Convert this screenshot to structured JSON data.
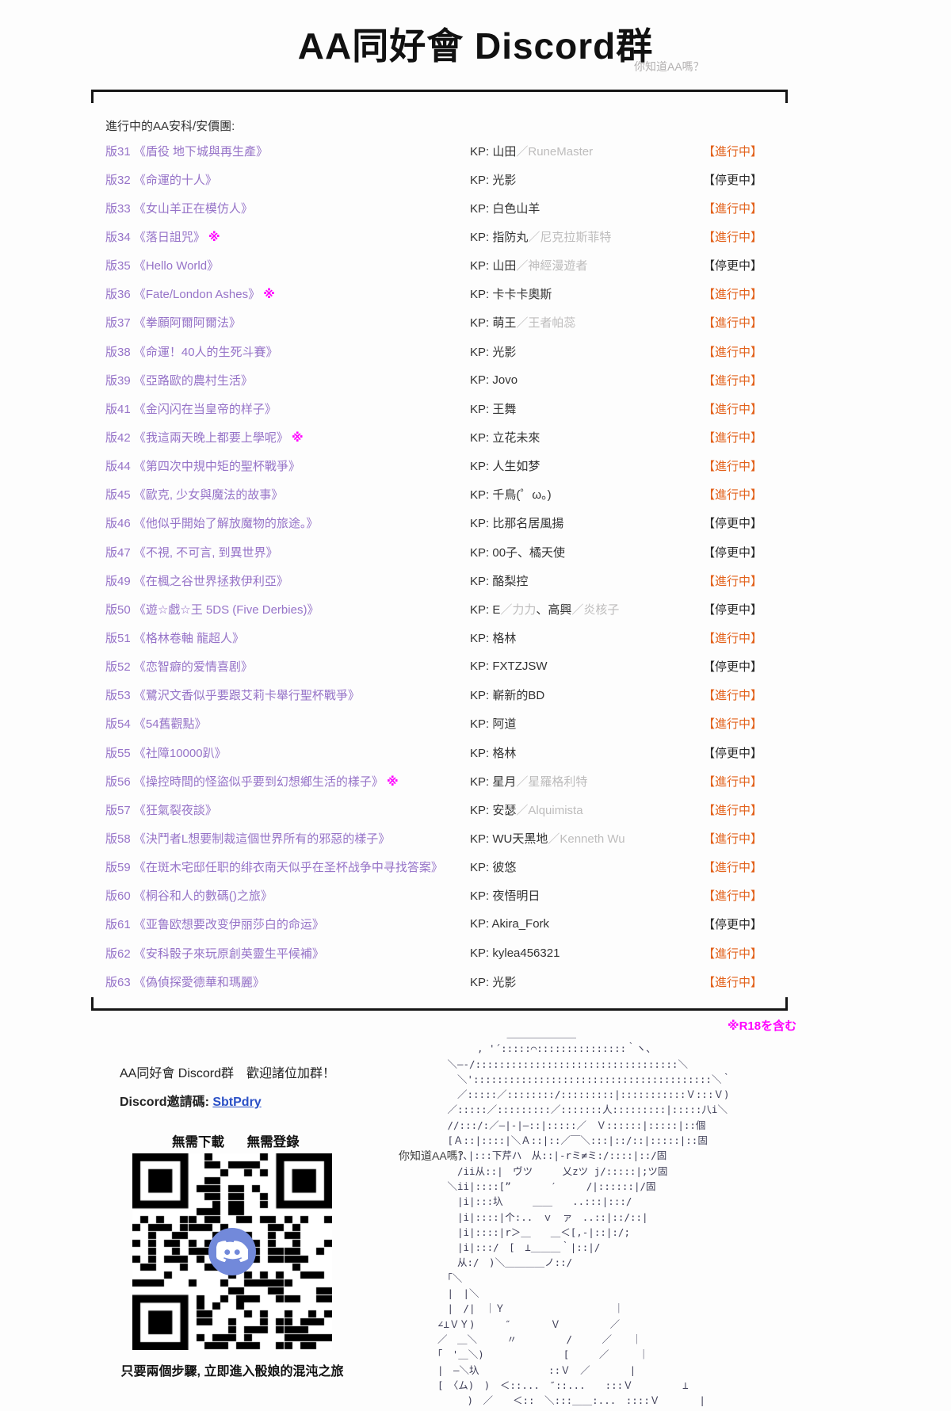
{
  "header": {
    "title": "AA同好會 Discord群",
    "subtitle": "你知道AA嗎？"
  },
  "list": {
    "header": "進行中的AA安科/安價團:",
    "kp_prefix": "KP:",
    "r18_mark": "※",
    "statuses": {
      "ongoing": "【進行中】",
      "paused": "【停更中】"
    },
    "rows": [
      {
        "no": "版31",
        "title": "《盾役 地下城與再生產》",
        "r18": false,
        "kp": [
          {
            "t": "山田"
          },
          {
            "t": "／RuneMaster",
            "g": 1
          }
        ],
        "s": "ongoing"
      },
      {
        "no": "版32",
        "title": "《命運的十人》",
        "r18": false,
        "kp": [
          {
            "t": "光影"
          }
        ],
        "s": "paused"
      },
      {
        "no": "版33",
        "title": "《女山羊正在模仿人》",
        "r18": false,
        "kp": [
          {
            "t": "白色山羊"
          }
        ],
        "s": "ongoing"
      },
      {
        "no": "版34",
        "title": "《落日詛咒》",
        "r18": true,
        "kp": [
          {
            "t": "指防丸"
          },
          {
            "t": "／尼克拉斯菲特",
            "g": 1
          }
        ],
        "s": "ongoing"
      },
      {
        "no": "版35",
        "title": "《Hello World》",
        "r18": false,
        "kp": [
          {
            "t": "山田"
          },
          {
            "t": "／神經漫遊者",
            "g": 1
          }
        ],
        "s": "paused"
      },
      {
        "no": "版36",
        "title": "《Fate/London Ashes》",
        "r18": true,
        "kp": [
          {
            "t": "卡卡卡奧斯"
          }
        ],
        "s": "ongoing"
      },
      {
        "no": "版37",
        "title": "《拳願阿爾阿爾法》",
        "r18": false,
        "kp": [
          {
            "t": "萌王"
          },
          {
            "t": "／王者帕蕊",
            "g": 1
          }
        ],
        "s": "ongoing"
      },
      {
        "no": "版38",
        "title": "《命運！40人的生死斗賽》",
        "r18": false,
        "kp": [
          {
            "t": "光影"
          }
        ],
        "s": "ongoing"
      },
      {
        "no": "版39",
        "title": "《亞路歐的農村生活》",
        "r18": false,
        "kp": [
          {
            "t": "Jovo"
          }
        ],
        "s": "ongoing"
      },
      {
        "no": "版41",
        "title": "《金闪闪在当皇帝的样子》",
        "r18": false,
        "kp": [
          {
            "t": "王舞"
          }
        ],
        "s": "ongoing"
      },
      {
        "no": "版42",
        "title": "《我這兩天晚上都要上學呢》",
        "r18": true,
        "kp": [
          {
            "t": "立花未來"
          }
        ],
        "s": "ongoing"
      },
      {
        "no": "版44",
        "title": "《第四次中規中矩的聖杯戰爭》",
        "r18": false,
        "kp": [
          {
            "t": "人生如梦"
          }
        ],
        "s": "ongoing"
      },
      {
        "no": "版45",
        "title": "《歐克, 少女與魔法的故事》",
        "r18": false,
        "kp": [
          {
            "t": "千鳥(゜ω。)"
          }
        ],
        "s": "ongoing"
      },
      {
        "no": "版46",
        "title": "《他似乎開始了解放魔物的旅途。》",
        "r18": false,
        "kp": [
          {
            "t": "比那名居風揚"
          }
        ],
        "s": "paused"
      },
      {
        "no": "版47",
        "title": "《不視, 不可言, 到異世界》",
        "r18": false,
        "kp": [
          {
            "t": "00子、橘天使"
          }
        ],
        "s": "paused"
      },
      {
        "no": "版49",
        "title": "《在楓之谷世界拯救伊利亞》",
        "r18": false,
        "kp": [
          {
            "t": "酪梨控"
          }
        ],
        "s": "ongoing"
      },
      {
        "no": "版50",
        "title": "《遊☆戲☆王 5DS (Five Derbies)》",
        "r18": false,
        "kp": [
          {
            "t": "E"
          },
          {
            "t": "／力力",
            "g": 1
          },
          {
            "t": "、高興"
          },
          {
            "t": "／炎核子",
            "g": 1
          }
        ],
        "s": "paused"
      },
      {
        "no": "版51",
        "title": "《格林卷軸 龍超人》",
        "r18": false,
        "kp": [
          {
            "t": "格林"
          }
        ],
        "s": "ongoing"
      },
      {
        "no": "版52",
        "title": "《恋智癖的爱情喜剧》",
        "r18": false,
        "kp": [
          {
            "t": "FXTZJSW"
          }
        ],
        "s": "paused"
      },
      {
        "no": "版53",
        "title": "《鷺沢文香似乎要跟艾莉卡舉行聖杯戰爭》",
        "r18": false,
        "kp": [
          {
            "t": "嶄新的BD"
          }
        ],
        "s": "ongoing"
      },
      {
        "no": "版54",
        "title": "《54舊觀點》",
        "r18": false,
        "kp": [
          {
            "t": "阿道"
          }
        ],
        "s": "ongoing"
      },
      {
        "no": "版55",
        "title": "《社障10000趴》",
        "r18": false,
        "kp": [
          {
            "t": "格林"
          }
        ],
        "s": "paused"
      },
      {
        "no": "版56",
        "title": "《操控時間的怪盜似乎要到幻想鄉生活的樣子》",
        "r18": true,
        "kp": [
          {
            "t": "星月"
          },
          {
            "t": "／星羅格利特",
            "g": 1
          }
        ],
        "s": "ongoing"
      },
      {
        "no": "版57",
        "title": "《狂氣裂夜談》",
        "r18": false,
        "kp": [
          {
            "t": "安瑟"
          },
          {
            "t": "／Alquimista",
            "g": 1
          }
        ],
        "s": "ongoing"
      },
      {
        "no": "版58",
        "title": "《決鬥者L想要制裁這個世界所有的邪惡的樣子》",
        "r18": false,
        "kp": [
          {
            "t": "WU天黑地"
          },
          {
            "t": "／Kenneth Wu",
            "g": 1
          }
        ],
        "s": "ongoing"
      },
      {
        "no": "版59",
        "title": "《在斑木宅邸任职的绯衣南天似乎在圣杯战争中寻找答案》",
        "r18": false,
        "kp": [
          {
            "t": "彼悠"
          }
        ],
        "s": "ongoing"
      },
      {
        "no": "版60",
        "title": "《桐谷和人的數碼()之旅》",
        "r18": false,
        "kp": [
          {
            "t": "夜悟明日"
          }
        ],
        "s": "ongoing"
      },
      {
        "no": "版61",
        "title": "《亚鲁欧想要改变伊丽莎白的命运》",
        "r18": false,
        "kp": [
          {
            "t": "Akira_Fork"
          }
        ],
        "s": "paused"
      },
      {
        "no": "版62",
        "title": "《安科骰子來玩原創英靈生平候補》",
        "r18": false,
        "kp": [
          {
            "t": "kylea456321"
          }
        ],
        "s": "ongoing"
      },
      {
        "no": "版63",
        "title": "《偽偵探愛德華和瑪麗》",
        "r18": false,
        "kp": [
          {
            "t": "光影"
          }
        ],
        "s": "ongoing"
      }
    ]
  },
  "r18_note": "※R18を含む",
  "footer": {
    "welcome": "AA同好會 Discord群　歡迎諸位加群！",
    "invite_label": "Discord邀請碼: ",
    "invite_code": "SbtPdry",
    "no_download": "無需下載",
    "no_login": "無需登錄",
    "qr_caption": "只要兩個步驟, 立即進入骰娘的混沌之旅",
    "aa_caption": "你知道AA嗎？",
    "ascii_art": [
      "　　　　　　　＿＿＿＿＿＿＿",
      "　　　　, '´:::::⌒:::::::::::::::｀ヽ、",
      "　＼―-/::::::::::::::::::::::::::::::::::＼",
      "　　＼'::::::::::::::::::::::::::::::::::::::::＼｀",
      "　　／:::::／::::::::/:::::::::|:::::::::::Ｖ:::Ｖ)",
      "　／:::::／:::::::::／:::::::人:::::::::|:::::八i＼",
      "　//:::/:／―|-|―::|:::::／　Ｖ::::::|:::::|::個",
      "　[Ａ::|::::|＼Ａ::|::／￣＼:::|::/::|:::::|::固",
      "　　)､|:::下芹ハ　从::|-rミ≠ミ:/::::|::/固",
      "　　/ii从::|　ヴツ　　　乂zツ j/:::::|;ツ固",
      "　＼ii|::::[”　　　　′　　　/|::::::|/固",
      "　　|i|:::圦　　　＿＿　　..:::|:::/",
      "　　|i|::::|个:..　ｖ　ァ　..::|::/::|",
      "　　|i|::::|r＞＿　　＿＜[,-|::|:/;",
      "　　|i|:::/　[　⊥＿＿＿｀|::|/",
      "　　从:/　)＼＿＿＿＿ノ::/",
      "　｢＼",
      "　|　|＼",
      "　|　/|　｜Ｙ　　　　　　　　　　　｜",
      "∠⊥ＶＹ)　　　″　　　　Ｖ　　　　　／",
      "／　＿＼　　　〃　　　　　/　　　／　　｜",
      "｢　'＿＼)　　　　　　　　[　　　／　　　｜",
      "|　―＼圦　　　　　　　::Ｖ　／　　　　|",
      "[　〈ム)　)　＜::...　″::...　　:::Ｖ　　　　　⊥",
      "　　　)　／　　＜::　＼:::＿＿:...　::::Ｖ　　　　|"
    ]
  },
  "colors": {
    "ongoing": "#e2611b",
    "paused": "#2b2b2b",
    "thread_link": "#9673c8",
    "r18": "#ff00ff",
    "invite_link": "#2b50c6",
    "discord_brand": "#7289da"
  },
  "icons": {
    "discord_logo": "discord-mascot",
    "qr_code": "discord-invite-qr"
  }
}
